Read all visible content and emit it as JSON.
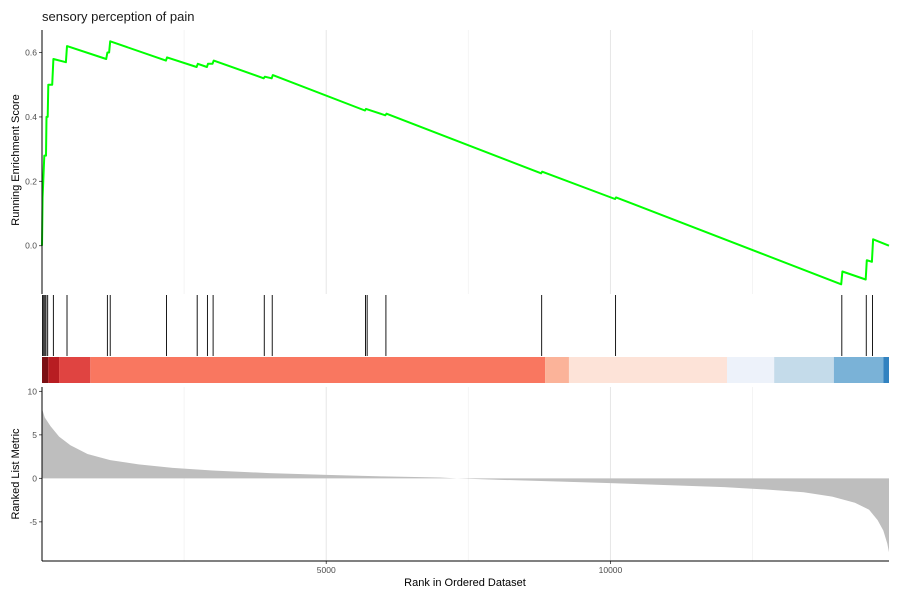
{
  "chart_data": {
    "type": "line",
    "title": "sensory perception of pain",
    "xlabel": "Rank in Ordered Dataset",
    "xlim": [
      0,
      14900
    ],
    "x_ticks": [
      5000,
      10000
    ],
    "grid": "vertical only, light grey",
    "panels": {
      "running_score": {
        "ylabel": "Running Enrichment Score",
        "ylim": [
          -0.15,
          0.67
        ],
        "y_ticks": [
          0.0,
          0.2,
          0.4,
          0.6
        ],
        "line_color": "#00ff00",
        "points": [
          [
            0,
            0.0
          ],
          [
            10,
            0.15
          ],
          [
            40,
            0.28
          ],
          [
            70,
            0.28
          ],
          [
            80,
            0.4
          ],
          [
            100,
            0.4
          ],
          [
            110,
            0.5
          ],
          [
            180,
            0.5
          ],
          [
            200,
            0.58
          ],
          [
            420,
            0.57
          ],
          [
            440,
            0.62
          ],
          [
            1130,
            0.58
          ],
          [
            1150,
            0.6
          ],
          [
            1180,
            0.6
          ],
          [
            1200,
            0.635
          ],
          [
            2180,
            0.575
          ],
          [
            2200,
            0.585
          ],
          [
            2720,
            0.555
          ],
          [
            2740,
            0.565
          ],
          [
            2900,
            0.555
          ],
          [
            2920,
            0.565
          ],
          [
            3000,
            0.565
          ],
          [
            3020,
            0.575
          ],
          [
            3900,
            0.52
          ],
          [
            3920,
            0.525
          ],
          [
            4040,
            0.52
          ],
          [
            4060,
            0.53
          ],
          [
            5680,
            0.42
          ],
          [
            5700,
            0.425
          ],
          [
            6040,
            0.405
          ],
          [
            6060,
            0.41
          ],
          [
            8780,
            0.225
          ],
          [
            8800,
            0.23
          ],
          [
            10080,
            0.145
          ],
          [
            10100,
            0.15
          ],
          [
            14060,
            -0.12
          ],
          [
            14080,
            -0.08
          ],
          [
            14490,
            -0.105
          ],
          [
            14510,
            -0.045
          ],
          [
            14600,
            -0.05
          ],
          [
            14620,
            0.02
          ],
          [
            14900,
            0.0
          ]
        ]
      },
      "hits": {
        "positions": [
          10,
          30,
          50,
          70,
          100,
          200,
          440,
          1150,
          1200,
          2190,
          2730,
          2910,
          3010,
          3910,
          4050,
          5690,
          5720,
          6050,
          8790,
          10090,
          14070,
          14500,
          14610
        ]
      },
      "color_strip": {
        "segments": [
          {
            "from": 0,
            "to": 110,
            "color": "#7b1014"
          },
          {
            "from": 110,
            "to": 300,
            "color": "#b81d22"
          },
          {
            "from": 300,
            "to": 850,
            "color": "#e04441"
          },
          {
            "from": 850,
            "to": 8850,
            "color": "#f97760"
          },
          {
            "from": 8850,
            "to": 9270,
            "color": "#fbb399"
          },
          {
            "from": 9270,
            "to": 12050,
            "color": "#fde3d8"
          },
          {
            "from": 12050,
            "to": 12880,
            "color": "#edf2fa"
          },
          {
            "from": 12880,
            "to": 13930,
            "color": "#c4dbea"
          },
          {
            "from": 13930,
            "to": 14800,
            "color": "#7ab2d7"
          },
          {
            "from": 14800,
            "to": 14900,
            "color": "#3182c0"
          }
        ]
      },
      "ranked_metric": {
        "ylabel": "Ranked List Metric",
        "ylim": [
          -9.5,
          10.5
        ],
        "y_ticks": [
          10,
          5,
          0,
          -5
        ],
        "fill_color": "#bebebe",
        "points": [
          [
            0,
            8.0
          ],
          [
            50,
            7.0
          ],
          [
            150,
            6.0
          ],
          [
            300,
            4.8
          ],
          [
            500,
            3.8
          ],
          [
            800,
            2.8
          ],
          [
            1200,
            2.1
          ],
          [
            1700,
            1.6
          ],
          [
            2300,
            1.2
          ],
          [
            3000,
            0.9
          ],
          [
            4000,
            0.6
          ],
          [
            5000,
            0.4
          ],
          [
            6000,
            0.22
          ],
          [
            7000,
            0.1
          ],
          [
            7300,
            0.0
          ],
          [
            8000,
            -0.15
          ],
          [
            9000,
            -0.35
          ],
          [
            10000,
            -0.55
          ],
          [
            11000,
            -0.78
          ],
          [
            12000,
            -1.0
          ],
          [
            12800,
            -1.3
          ],
          [
            13400,
            -1.6
          ],
          [
            13900,
            -2.1
          ],
          [
            14300,
            -2.8
          ],
          [
            14550,
            -3.6
          ],
          [
            14700,
            -4.8
          ],
          [
            14800,
            -6.0
          ],
          [
            14870,
            -7.5
          ],
          [
            14900,
            -8.5
          ]
        ]
      }
    }
  }
}
